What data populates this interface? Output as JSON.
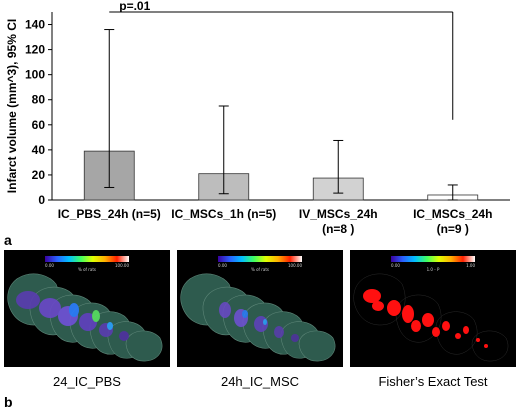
{
  "panel_a": {
    "letter": "a"
  },
  "panel_b": {
    "letter": "b"
  },
  "chart_data": {
    "type": "bar",
    "ylabel": "Infarct volume (mm^3), 95% CI",
    "ylim": [
      0,
      150
    ],
    "yticks": [
      0,
      20,
      40,
      60,
      80,
      100,
      120,
      140
    ],
    "categories": [
      [
        "IC_PBS_24h (n=5)"
      ],
      [
        "IC_MSCs_1h (n=5)"
      ],
      [
        "IV_MSCs_24h",
        "(n=8 )"
      ],
      [
        "IC_MSCs_24h",
        "(n=9 )"
      ]
    ],
    "values": [
      39,
      21,
      17.5,
      4
    ],
    "ci_low": [
      10,
      5,
      5.5,
      0
    ],
    "ci_high": [
      136,
      75,
      47.5,
      12
    ],
    "bar_colors": [
      "#a6a6a6",
      "#bdbdbd",
      "#d2d2d2",
      "#ffffff"
    ],
    "annotation": {
      "text": "p=.01",
      "from_category": 0,
      "to_category": 3,
      "level": 150,
      "right_drop_to": 64
    },
    "grid": false
  },
  "brain_panels": [
    {
      "caption": "24_IC_PBS",
      "scale": {
        "min": "0.00",
        "max": "100.00",
        "mid": "% of rats"
      },
      "gradient": [
        "#3a00a0",
        "#2a60ff",
        "#00c0ff",
        "#40ff60",
        "#e0ff00",
        "#ffb000",
        "#ff2000",
        "#ffffff"
      ]
    },
    {
      "caption": "24h_IC_MSC",
      "scale": {
        "min": "0.00",
        "max": "100.00",
        "mid": "% of rats"
      },
      "gradient": [
        "#3a00a0",
        "#2a60ff",
        "#00c0ff",
        "#40ff60",
        "#e0ff00",
        "#ffb000",
        "#ff2000",
        "#ffffff"
      ]
    },
    {
      "caption": "Fisher’s Exact Test",
      "scale": {
        "min": "0.00",
        "max": "1.00",
        "mid": "1.0 - P"
      },
      "gradient": [
        "#3a00a0",
        "#2a60ff",
        "#00c0ff",
        "#40ff60",
        "#e0ff00",
        "#ffb000",
        "#ff2000",
        "#ffffff"
      ]
    }
  ]
}
